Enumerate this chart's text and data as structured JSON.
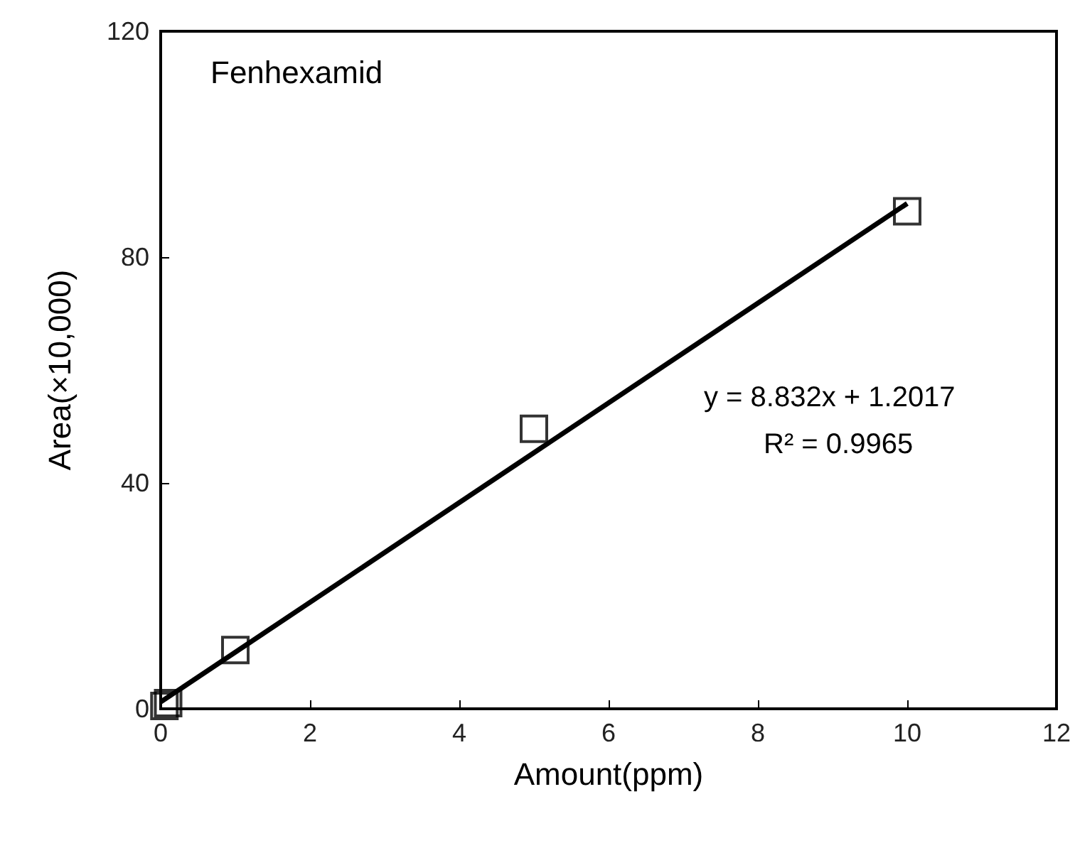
{
  "chart_data": {
    "type": "scatter",
    "xlabel": "Amount(ppm)",
    "ylabel": "Area(×10,000)",
    "annotations": [
      "Fenhexamid",
      "y = 8.832x + 1.2017",
      "R² = 0.9965"
    ],
    "series": [
      {
        "color": "#000000",
        "marker": "square",
        "x": [
          0.05,
          0.1,
          1,
          5,
          10
        ],
        "values": [
          0.5,
          1,
          10.4,
          49.6,
          88.1
        ]
      },
      {
        "type": "line",
        "color": "#000000",
        "marker": "none",
        "line_style": "solid",
        "x": [
          0,
          10
        ],
        "values": [
          1.2,
          89.5
        ]
      }
    ],
    "xlim": [
      0,
      12
    ],
    "xticks": [
      0,
      2,
      4,
      6,
      8,
      10,
      12
    ],
    "ylim": [
      0,
      120
    ],
    "yticks": [
      0,
      40,
      80,
      120
    ],
    "grid": false
  }
}
